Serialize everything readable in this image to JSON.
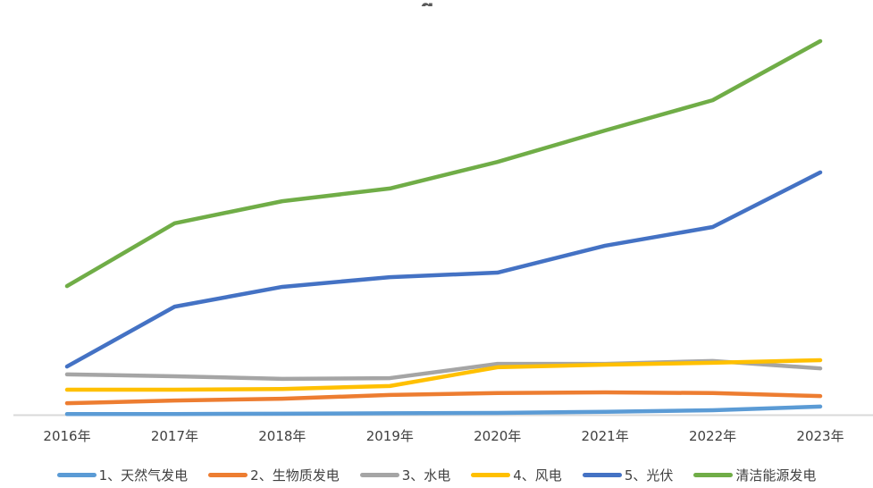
{
  "page": {
    "clipped_title_fragment": "g"
  },
  "chart_data": {
    "type": "line",
    "title": "",
    "xlabel": "",
    "ylabel": "",
    "categories": [
      "2016年",
      "2017年",
      "2018年",
      "2019年",
      "2020年",
      "2021年",
      "2022年",
      "2023年"
    ],
    "series": [
      {
        "id": "natural-gas",
        "name": "1、天然气发电",
        "color": "#5B9BD5",
        "values": [
          0.3,
          0.3,
          0.4,
          0.5,
          0.6,
          0.9,
          1.3,
          2.3
        ]
      },
      {
        "id": "biomass",
        "name": "2、生物质发电",
        "color": "#ED7D31",
        "values": [
          3.2,
          3.9,
          4.4,
          5.4,
          5.9,
          6.1,
          5.9,
          5.1
        ]
      },
      {
        "id": "hydro",
        "name": "3、水电",
        "color": "#A5A5A5",
        "values": [
          10.9,
          10.4,
          9.7,
          9.9,
          13.7,
          13.7,
          14.5,
          12.5
        ]
      },
      {
        "id": "wind",
        "name": "4、风电",
        "color": "#FFC000",
        "values": [
          6.8,
          6.8,
          7.0,
          7.8,
          12.8,
          13.5,
          14.0,
          14.7
        ]
      },
      {
        "id": "solar-pv",
        "name": "5、光伏",
        "color": "#4472C4",
        "values": [
          13.0,
          29.0,
          34.3,
          36.9,
          38.1,
          45.3,
          50.3,
          64.9
        ]
      },
      {
        "id": "clean-energy",
        "name": "清洁能源发电",
        "color": "#70AD47",
        "values": [
          34.5,
          51.3,
          57.2,
          60.6,
          67.7,
          76.1,
          84.2,
          100.0
        ]
      }
    ],
    "ylim": [
      0,
      105
    ],
    "y_axis_labels_visible": false,
    "gridlines": false,
    "legend_position": "bottom",
    "axis_color": "#D9D9D9",
    "label_color": "#404040",
    "units_note": "y-axis unlabeled in source image; values are relative units estimated from pixel positions (清洁能源发电 2023 = 100)"
  }
}
